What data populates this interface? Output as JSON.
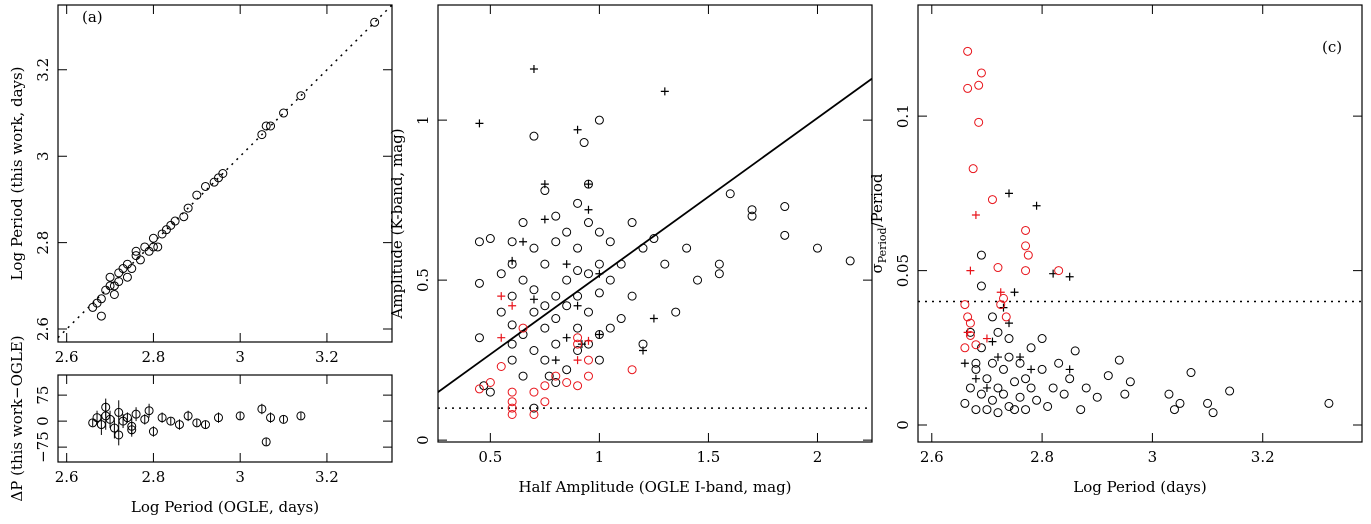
{
  "chart_data": [
    {
      "type": "scatter",
      "annotation": "(a)",
      "y_label": "Log Period (this work, days)",
      "xlim": [
        2.58,
        3.35
      ],
      "ylim": [
        2.57,
        3.35
      ],
      "xticks": [
        2.6,
        2.8,
        3,
        3.2
      ],
      "yticks": [
        2.6,
        2.8,
        3,
        3.2
      ],
      "lines": [
        {
          "x": [
            2.58,
            3.35
          ],
          "y": [
            2.58,
            3.35
          ],
          "style": "dotted"
        }
      ],
      "series": [
        {
          "color": "#000000",
          "marker": "circle",
          "x": [
            2.66,
            2.67,
            2.68,
            2.69,
            2.7,
            2.7,
            2.71,
            2.72,
            2.72,
            2.73,
            2.74,
            2.75,
            2.76,
            2.77,
            2.78,
            2.79,
            2.8,
            2.81,
            2.82,
            2.83,
            2.84,
            2.85,
            2.87,
            2.88,
            2.9,
            2.92,
            2.94,
            2.95,
            2.96,
            3.05,
            3.06,
            3.07,
            3.1,
            3.14,
            3.31,
            2.68,
            2.71,
            2.74,
            2.76,
            2.8
          ],
          "y": [
            2.65,
            2.66,
            2.67,
            2.69,
            2.7,
            2.72,
            2.7,
            2.73,
            2.71,
            2.74,
            2.75,
            2.74,
            2.77,
            2.76,
            2.79,
            2.78,
            2.81,
            2.79,
            2.82,
            2.83,
            2.84,
            2.85,
            2.86,
            2.88,
            2.91,
            2.93,
            2.94,
            2.95,
            2.96,
            3.05,
            3.07,
            3.07,
            3.1,
            3.14,
            3.31,
            2.63,
            2.68,
            2.72,
            2.78,
            2.79
          ]
        }
      ]
    },
    {
      "type": "scatter",
      "x_label": "Log Period (OGLE, days)",
      "y_label": "ΔP (this work−OGLE)",
      "xlim": [
        2.58,
        3.35
      ],
      "ylim": [
        -118,
        133
      ],
      "xticks": [
        2.6,
        2.8,
        3,
        3.2
      ],
      "yticks": [
        {
          "value": -75,
          "label": "−75"
        },
        0,
        75
      ],
      "series": [
        {
          "color": "#000000",
          "marker": "circle",
          "x": [
            2.66,
            2.67,
            2.68,
            2.69,
            2.7,
            2.71,
            2.72,
            2.73,
            2.74,
            2.75,
            2.76,
            2.78,
            2.8,
            2.82,
            2.84,
            2.86,
            2.88,
            2.9,
            2.92,
            2.95,
            3.0,
            3.05,
            3.06,
            3.07,
            3.1,
            3.14,
            2.69,
            2.72,
            2.75,
            2.79
          ],
          "y": [
            -5,
            10,
            -10,
            15,
            5,
            -20,
            25,
            0,
            10,
            -15,
            20,
            5,
            -30,
            10,
            0,
            -10,
            15,
            -5,
            -10,
            10,
            15,
            35,
            -60,
            10,
            5,
            15,
            40,
            -40,
            -25,
            30
          ],
          "err": [
            10,
            20,
            30,
            40,
            25,
            30,
            35,
            20,
            15,
            25,
            20,
            15,
            15,
            15,
            10,
            15,
            15,
            10,
            10,
            15,
            10,
            15,
            10,
            15,
            10,
            10,
            25,
            30,
            20,
            20
          ]
        }
      ]
    },
    {
      "type": "scatter",
      "x_label": "Half Amplitude (OGLE I-band, mag)",
      "y_label": "Amplitude (K-band, mag)",
      "xlim": [
        0.26,
        2.25
      ],
      "ylim": [
        -0.006,
        1.36
      ],
      "xticks": [
        0.5,
        1,
        1.5,
        2
      ],
      "yticks": [
        0,
        0.5,
        1
      ],
      "lines": [
        {
          "x": [
            0.26,
            2.25
          ],
          "y": [
            0.15,
            1.13
          ],
          "style": "solid"
        },
        {
          "x": [
            0.26,
            2.25
          ],
          "y": [
            0.1,
            0.1
          ],
          "style": "dotted"
        }
      ],
      "series": [
        {
          "color": "#000000",
          "marker": "circle",
          "x": [
            0.45,
            0.45,
            0.45,
            0.47,
            0.5,
            0.5,
            0.55,
            0.55,
            0.6,
            0.6,
            0.6,
            0.6,
            0.6,
            0.6,
            0.65,
            0.65,
            0.65,
            0.65,
            0.7,
            0.7,
            0.7,
            0.7,
            0.7,
            0.7,
            0.75,
            0.75,
            0.75,
            0.75,
            0.75,
            0.8,
            0.8,
            0.8,
            0.8,
            0.8,
            0.8,
            0.85,
            0.85,
            0.85,
            0.85,
            0.9,
            0.9,
            0.9,
            0.9,
            0.9,
            0.9,
            0.95,
            0.95,
            0.95,
            0.95,
            0.95,
            1,
            1,
            1,
            1,
            1,
            1,
            1.05,
            1.05,
            1.05,
            1.1,
            1.1,
            1.15,
            1.15,
            1.2,
            1.2,
            1.25,
            1.3,
            1.35,
            1.4,
            1.45,
            1.55,
            1.55,
            1.6,
            1.7,
            1.7,
            1.85,
            1.85,
            2.0,
            2.15,
            0.93,
            0.77
          ],
          "y": [
            0.62,
            0.49,
            0.32,
            0.17,
            0.63,
            0.15,
            0.4,
            0.52,
            0.62,
            0.55,
            0.45,
            0.36,
            0.3,
            0.25,
            0.68,
            0.5,
            0.33,
            0.2,
            0.95,
            0.6,
            0.47,
            0.4,
            0.28,
            0.1,
            0.78,
            0.55,
            0.42,
            0.35,
            0.25,
            0.7,
            0.62,
            0.45,
            0.38,
            0.3,
            0.18,
            0.65,
            0.5,
            0.42,
            0.22,
            0.74,
            0.6,
            0.53,
            0.45,
            0.35,
            0.28,
            0.8,
            0.68,
            0.52,
            0.4,
            0.3,
            1,
            0.65,
            0.55,
            0.46,
            0.33,
            0.25,
            0.62,
            0.5,
            0.35,
            0.55,
            0.38,
            0.68,
            0.45,
            0.6,
            0.3,
            0.63,
            0.55,
            0.4,
            0.6,
            0.5,
            0.55,
            0.52,
            0.77,
            0.72,
            0.7,
            0.73,
            0.64,
            0.6,
            0.56,
            0.93,
            0.2
          ]
        },
        {
          "color": "#000000",
          "marker": "plus",
          "x": [
            0.45,
            0.7,
            0.9,
            1.3,
            0.75,
            0.95,
            0.65,
            0.85,
            0.75,
            0.95,
            0.6,
            0.9,
            1.0,
            1.25,
            1.2,
            0.85,
            0.92,
            0.7,
            1.0,
            0.8
          ],
          "y": [
            0.99,
            1.16,
            0.97,
            1.09,
            0.8,
            0.8,
            0.62,
            0.55,
            0.69,
            0.72,
            0.56,
            0.42,
            0.52,
            0.38,
            0.28,
            0.32,
            0.3,
            0.44,
            0.33,
            0.25
          ]
        },
        {
          "color": "#e8141b",
          "marker": "circle",
          "x": [
            0.45,
            0.5,
            0.55,
            0.6,
            0.6,
            0.6,
            0.6,
            0.7,
            0.7,
            0.75,
            0.75,
            0.8,
            0.85,
            0.9,
            0.9,
            0.9,
            0.95,
            0.95,
            1.15,
            0.65
          ],
          "y": [
            0.16,
            0.18,
            0.23,
            0.15,
            0.12,
            0.1,
            0.08,
            0.08,
            0.15,
            0.12,
            0.17,
            0.2,
            0.18,
            0.17,
            0.32,
            0.3,
            0.25,
            0.2,
            0.22,
            0.35
          ]
        },
        {
          "color": "#e8141b",
          "marker": "plus",
          "x": [
            0.55,
            0.55,
            0.6,
            0.9,
            0.95
          ],
          "y": [
            0.45,
            0.32,
            0.42,
            0.25,
            0.31
          ]
        }
      ]
    },
    {
      "type": "scatter",
      "annotation": "(c)",
      "x_label": "Log Period (days)",
      "y_label": [
        "σ",
        "Period",
        "/Period"
      ],
      "xlim": [
        2.575,
        3.38
      ],
      "ylim": [
        -0.0055,
        0.136
      ],
      "xticks": [
        2.6,
        2.8,
        3,
        3.2
      ],
      "yticks": [
        0,
        0.05,
        0.1
      ],
      "lines": [
        {
          "x": [
            2.575,
            3.38
          ],
          "y": [
            0.04,
            0.04
          ],
          "style": "dotted"
        }
      ],
      "series": [
        {
          "color": "#000000",
          "marker": "circle",
          "x": [
            2.66,
            2.67,
            2.67,
            2.68,
            2.68,
            2.69,
            2.69,
            2.7,
            2.7,
            2.71,
            2.71,
            2.72,
            2.72,
            2.73,
            2.73,
            2.74,
            2.74,
            2.75,
            2.75,
            2.76,
            2.76,
            2.77,
            2.77,
            2.78,
            2.78,
            2.79,
            2.8,
            2.8,
            2.81,
            2.82,
            2.83,
            2.84,
            2.85,
            2.86,
            2.87,
            2.88,
            2.9,
            2.92,
            2.94,
            2.95,
            2.96,
            3.03,
            3.04,
            3.05,
            3.07,
            3.1,
            3.11,
            3.14,
            3.32,
            2.69,
            2.69,
            2.71,
            2.74,
            2.72,
            2.68
          ],
          "y": [
            0.007,
            0.012,
            0.03,
            0.018,
            0.005,
            0.01,
            0.025,
            0.015,
            0.005,
            0.02,
            0.008,
            0.012,
            0.004,
            0.018,
            0.01,
            0.022,
            0.006,
            0.014,
            0.005,
            0.02,
            0.009,
            0.015,
            0.005,
            0.012,
            0.025,
            0.008,
            0.018,
            0.028,
            0.006,
            0.012,
            0.02,
            0.01,
            0.015,
            0.024,
            0.005,
            0.012,
            0.009,
            0.016,
            0.021,
            0.01,
            0.014,
            0.01,
            0.005,
            0.007,
            0.017,
            0.007,
            0.004,
            0.011,
            0.007,
            0.055,
            0.045,
            0.035,
            0.028,
            0.03,
            0.02
          ]
        },
        {
          "color": "#000000",
          "marker": "plus",
          "x": [
            2.66,
            2.68,
            2.7,
            2.72,
            2.74,
            2.79,
            2.82,
            2.85,
            2.75,
            2.73,
            2.74,
            2.71,
            2.76,
            2.78,
            2.85
          ],
          "y": [
            0.02,
            0.015,
            0.012,
            0.022,
            0.075,
            0.071,
            0.049,
            0.048,
            0.043,
            0.038,
            0.033,
            0.027,
            0.022,
            0.018,
            0.018
          ]
        },
        {
          "color": "#e8141b",
          "marker": "circle",
          "x": [
            2.665,
            2.665,
            2.675,
            2.685,
            2.69,
            2.685,
            2.71,
            2.66,
            2.665,
            2.67,
            2.67,
            2.68,
            2.66,
            2.72,
            2.77,
            2.77,
            2.775,
            2.77,
            2.83,
            2.73,
            2.725,
            2.735
          ],
          "y": [
            0.121,
            0.109,
            0.083,
            0.11,
            0.114,
            0.098,
            0.073,
            0.039,
            0.035,
            0.033,
            0.029,
            0.026,
            0.025,
            0.051,
            0.063,
            0.058,
            0.055,
            0.05,
            0.05,
            0.041,
            0.039,
            0.035
          ]
        },
        {
          "color": "#e8141b",
          "marker": "plus",
          "x": [
            2.67,
            2.68,
            2.725,
            2.665,
            2.7
          ],
          "y": [
            0.05,
            0.068,
            0.043,
            0.03,
            0.028
          ]
        }
      ]
    }
  ]
}
